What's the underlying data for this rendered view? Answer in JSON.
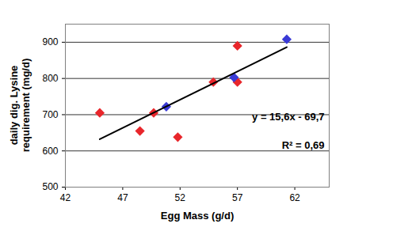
{
  "chart_data": {
    "type": "scatter",
    "x_label": "Egg Mass (g/d)",
    "y_label": "daily dig. Lysine requirement (mg/d)",
    "xlim": [
      42,
      65
    ],
    "xticks": [
      42,
      47,
      52,
      57,
      62
    ],
    "ylim": [
      500,
      950
    ],
    "yticks": [
      500,
      600,
      700,
      800,
      900
    ],
    "grid": "y",
    "series": [
      {
        "color": "#e8262b",
        "marker": "diamond",
        "x": [
          45.0,
          48.5,
          49.7,
          51.8,
          54.9,
          57.0,
          57.0
        ],
        "values": [
          705,
          655,
          705,
          638,
          790,
          890,
          790
        ]
      },
      {
        "color": "#3a3ad6",
        "marker": "diamond",
        "x": [
          50.8,
          56.7,
          61.3
        ],
        "values": [
          722,
          803,
          908
        ]
      },
      {
        "type": "line",
        "color": "#000000",
        "x": [
          45.0,
          61.3
        ],
        "values": [
          632.3,
          886.6
        ]
      }
    ],
    "annotations": [
      "y = 15,6x - 69,7",
      "R² = 0,69"
    ]
  }
}
